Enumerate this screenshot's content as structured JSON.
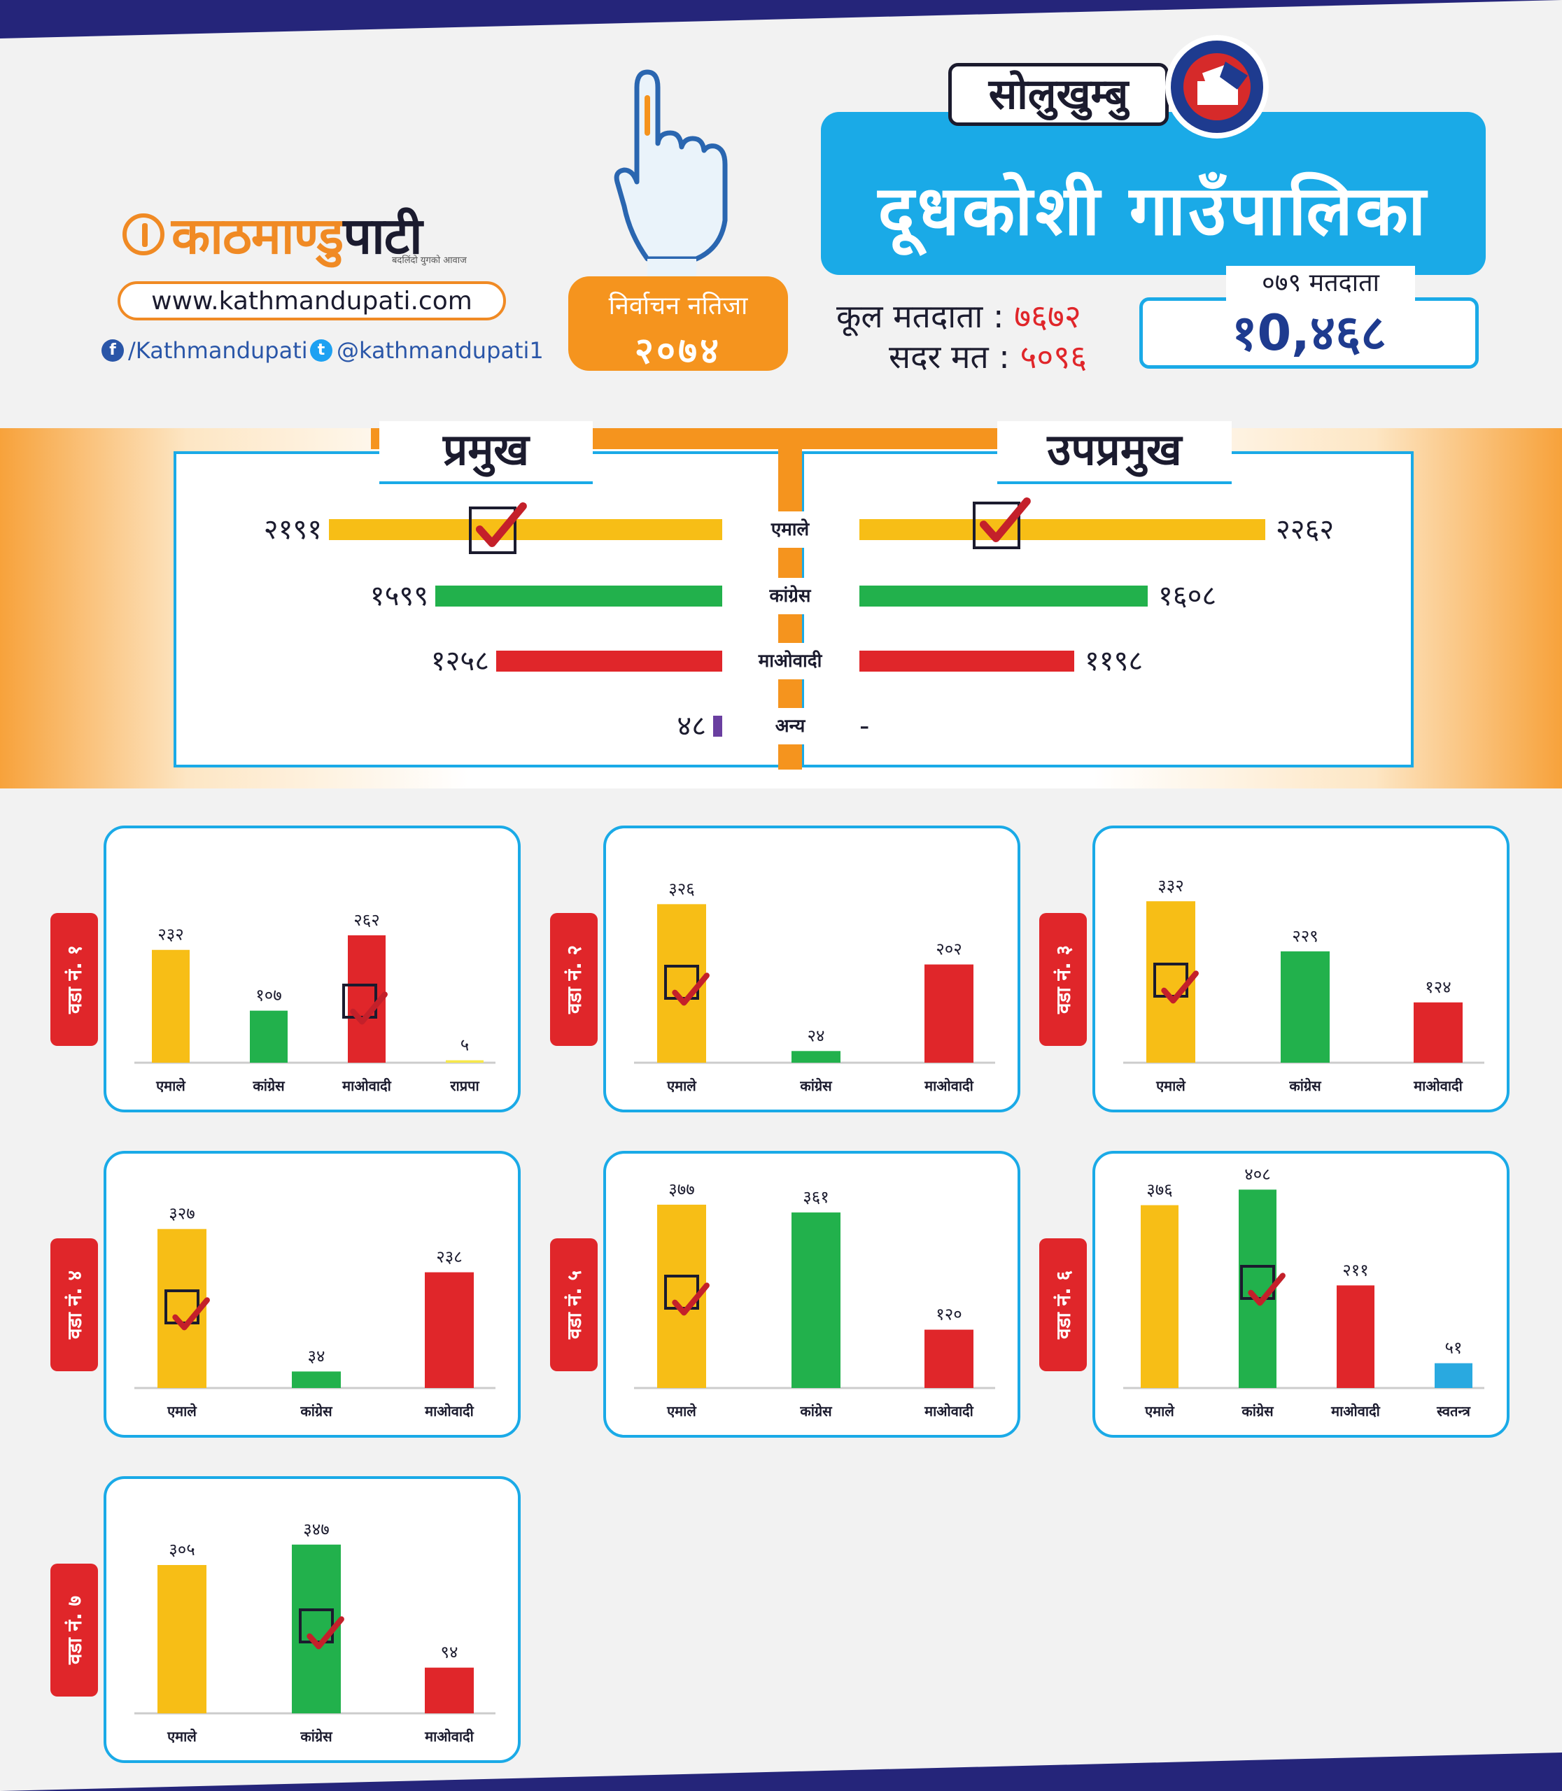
{
  "colors": {
    "uml": "#f7be16",
    "congress": "#22b14c",
    "maoist": "#e0262a",
    "rpp": "#f7e84a",
    "independent": "#29a9e0",
    "others": "#6a3fa0",
    "accent": "#1aaae7",
    "orange": "#f5941e",
    "navy": "#1e3b8f"
  },
  "brand": {
    "logo_a": "काठमाण्डु",
    "logo_b": "पाटी",
    "tagline": "बदलिंदो युगको आवाज",
    "url": "www.kathmandupati.com",
    "facebook": "/Kathmandupati",
    "twitter": "@kathmandupati1"
  },
  "badge": {
    "line1": "निर्वाचन नतिजा",
    "line2": "२०७४"
  },
  "header": {
    "district": "सोलुखुम्बु",
    "municipality": "दूधकोशी गाउँपालिका",
    "voters079_label": "०७९ मतदाता",
    "voters079_value": "१0,४६८",
    "total_voters_label": "कूल मतदाता :",
    "total_voters_value": "७६७२",
    "valid_votes_label": "सदर मत :",
    "valid_votes_value": "५०९६"
  },
  "chart_data": [
    {
      "type": "bar",
      "title": "प्रमुख",
      "orientation": "horizontal",
      "categories": [
        "एमाले",
        "कांग्रेस",
        "माओवादी",
        "अन्य"
      ],
      "values": [
        2191,
        1599,
        1258,
        48
      ],
      "labels": [
        "२१९१",
        "१५९९",
        "१२५८",
        "४८"
      ],
      "winner": "एमाले"
    },
    {
      "type": "bar",
      "title": "उपप्रमुख",
      "orientation": "horizontal",
      "categories": [
        "एमाले",
        "कांग्रेस",
        "माओवादी",
        "अन्य"
      ],
      "values": [
        2262,
        1608,
        1198,
        null
      ],
      "labels": [
        "२२६२",
        "१६०८",
        "११९८",
        "-"
      ],
      "winner": "एमाले"
    },
    {
      "type": "bar",
      "title": "वडा नं. १",
      "categories": [
        "एमाले",
        "कांग्रेस",
        "माओवादी",
        "राप्रपा"
      ],
      "values": [
        232,
        107,
        262,
        5
      ],
      "labels": [
        "२३२",
        "१०७",
        "२६२",
        "५"
      ],
      "winner": "माओवादी"
    },
    {
      "type": "bar",
      "title": "वडा नं. २",
      "categories": [
        "एमाले",
        "कांग्रेस",
        "माओवादी"
      ],
      "values": [
        326,
        24,
        202
      ],
      "labels": [
        "३२६",
        "२४",
        "२०२"
      ],
      "winner": "एमाले"
    },
    {
      "type": "bar",
      "title": "वडा नं. ३",
      "categories": [
        "एमाले",
        "कांग्रेस",
        "माओवादी"
      ],
      "values": [
        332,
        229,
        124
      ],
      "labels": [
        "३३२",
        "२२९",
        "१२४"
      ],
      "winner": "एमाले"
    },
    {
      "type": "bar",
      "title": "वडा नं. ४",
      "categories": [
        "एमाले",
        "कांग्रेस",
        "माओवादी"
      ],
      "values": [
        327,
        34,
        238
      ],
      "labels": [
        "३२७",
        "३४",
        "२३८"
      ],
      "winner": "एमाले"
    },
    {
      "type": "bar",
      "title": "वडा नं. ५",
      "categories": [
        "एमाले",
        "कांग्रेस",
        "माओवादी"
      ],
      "values": [
        377,
        361,
        120
      ],
      "labels": [
        "३७७",
        "३६१",
        "१२०"
      ],
      "winner": "एमाले"
    },
    {
      "type": "bar",
      "title": "वडा नं. ६",
      "categories": [
        "एमाले",
        "कांग्रेस",
        "माओवादी",
        "स्वतन्त्र"
      ],
      "values": [
        376,
        408,
        211,
        51
      ],
      "labels": [
        "३७६",
        "४०८",
        "२११",
        "५१"
      ],
      "winner": "कांग्रेस"
    },
    {
      "type": "bar",
      "title": "वडा नं. ७",
      "categories": [
        "एमाले",
        "कांग्रेस",
        "माओवादी"
      ],
      "values": [
        305,
        347,
        94
      ],
      "labels": [
        "३०५",
        "३४७",
        "९४"
      ],
      "winner": "कांग्रेस"
    }
  ]
}
